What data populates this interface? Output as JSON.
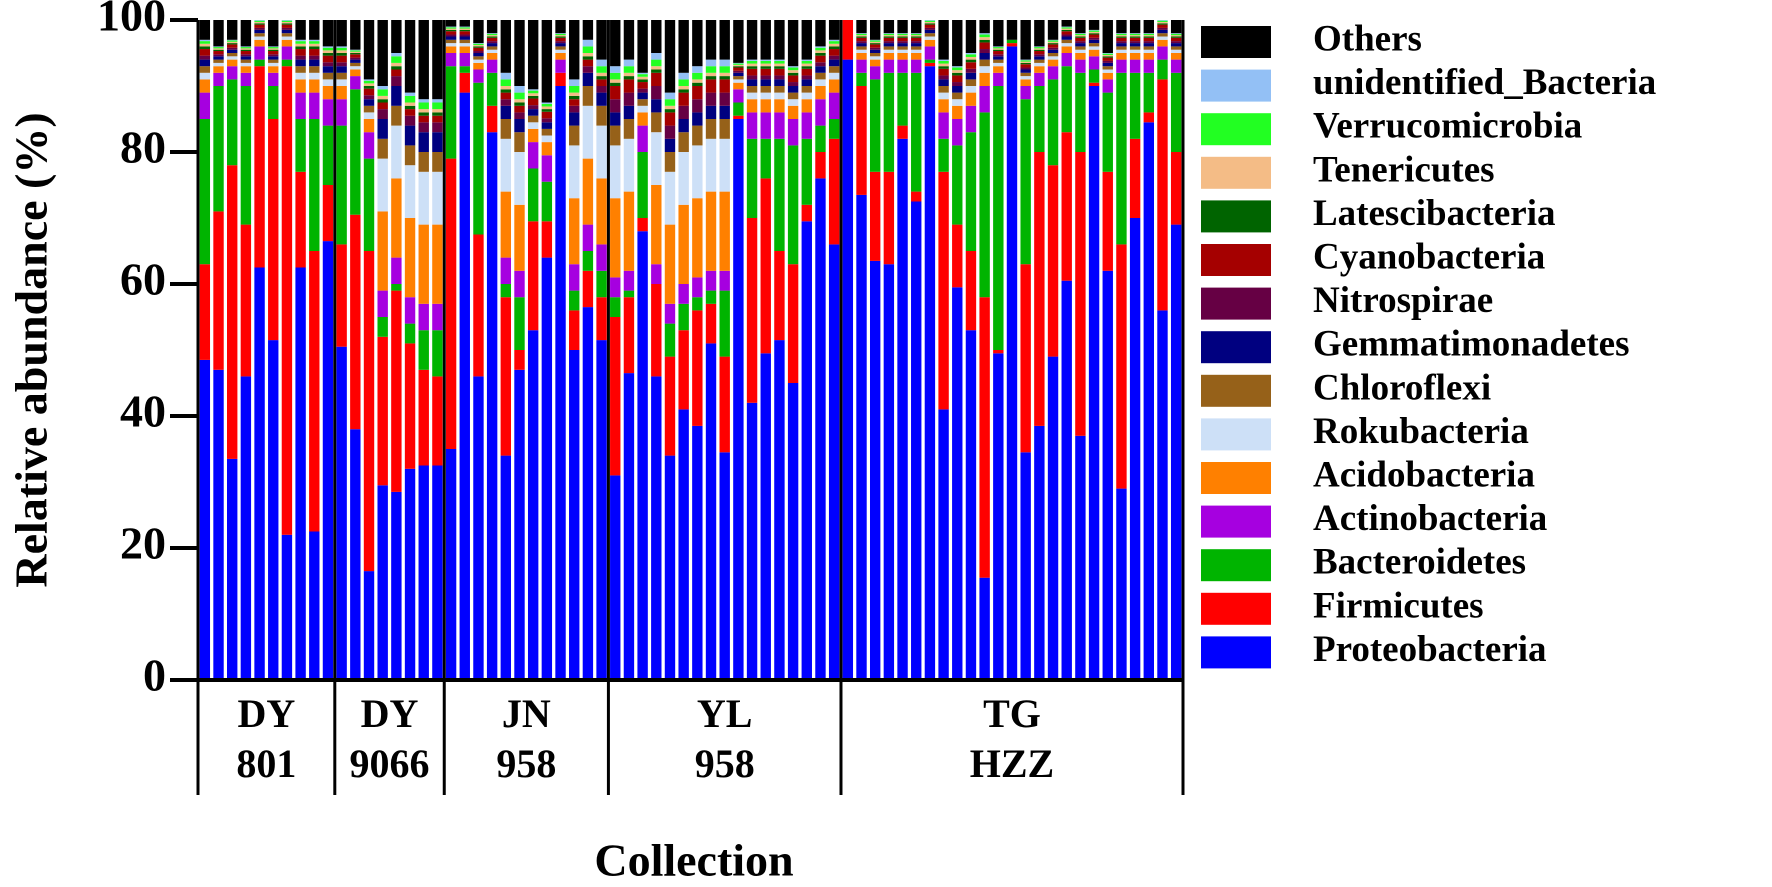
{
  "chart_data": {
    "type": "stacked_bar",
    "ylabel": "Relative abundance (%)",
    "xlabel": "Collection",
    "ylim": [
      0,
      100
    ],
    "yticks": [
      0,
      20,
      40,
      60,
      80,
      100
    ],
    "categories": [
      null,
      null,
      null,
      null,
      null,
      null,
      null,
      null,
      null,
      null,
      null,
      null,
      null,
      null,
      null,
      null,
      null,
      null,
      null,
      null,
      null,
      null,
      null,
      null,
      null,
      null,
      null,
      null,
      null,
      null,
      null,
      null,
      null,
      null,
      null,
      null,
      null,
      null,
      null,
      null,
      null,
      null,
      null,
      null,
      null,
      null,
      null,
      null,
      null,
      null,
      null,
      null,
      null,
      null,
      null,
      null,
      null,
      null,
      null,
      null,
      null,
      null,
      null,
      null,
      null,
      null,
      null,
      null,
      null,
      null,
      null,
      null
    ],
    "groups": [
      {
        "label": [
          "DY",
          "801"
        ],
        "size": 10
      },
      {
        "label": [
          "DY",
          "9066"
        ],
        "size": 8
      },
      {
        "label": [
          "JN",
          "958"
        ],
        "size": 12
      },
      {
        "label": [
          "YL",
          "958"
        ],
        "size": 17
      },
      {
        "label": [
          "TG",
          "HZZ"
        ],
        "size": 25
      }
    ],
    "series": [
      {
        "name": "Proteobacteria",
        "color": "#0000ff",
        "values": [
          48.5,
          47,
          33.5,
          46,
          62.5,
          51.5,
          22,
          62.5,
          22.5,
          66.5,
          50.5,
          38,
          16.5,
          29.5,
          28.5,
          32,
          32.5,
          32.5,
          35,
          89,
          46,
          83,
          34,
          47,
          53,
          64,
          90,
          50,
          56.5,
          51.5,
          31,
          46.5,
          68,
          46,
          34,
          41,
          38.5,
          51,
          34.5,
          85,
          42,
          49.5,
          51.5,
          45,
          69.5,
          76,
          66,
          94,
          73.5,
          63.5,
          63,
          82,
          72.5,
          93,
          41,
          59.5,
          53,
          15.5,
          49.5,
          96,
          34.5,
          38.5,
          49,
          60.5,
          37,
          90,
          62,
          29,
          70,
          84.5,
          56,
          69
        ]
      },
      {
        "name": "Firmicutes",
        "color": "#ff0000",
        "values": [
          14.5,
          24,
          44.5,
          23,
          30.5,
          33.5,
          71,
          14.5,
          42.5,
          8.5,
          15.5,
          32.5,
          48.5,
          22.5,
          30.5,
          19,
          14.5,
          13.5,
          44,
          3,
          21.5,
          4,
          24,
          3,
          16.5,
          5.5,
          2,
          6,
          5.5,
          6.5,
          24,
          11.5,
          2,
          14,
          15,
          12,
          17.5,
          6,
          14.5,
          0.5,
          28,
          26.5,
          13.5,
          18,
          2.5,
          4,
          16,
          6,
          16.5,
          13.5,
          14,
          2,
          1.5,
          0.5,
          36,
          9.5,
          12,
          42.5,
          0.5,
          0.5,
          28.5,
          41.5,
          29,
          22.5,
          43,
          0.5,
          15,
          37,
          12,
          1.5,
          35,
          11
        ]
      },
      {
        "name": "Bacteroidetes",
        "color": "#00b400",
        "values": [
          22,
          19,
          13,
          21,
          1,
          5,
          1,
          8,
          20,
          9,
          18,
          19,
          14,
          3,
          1,
          3,
          6,
          7,
          14,
          1,
          23,
          5,
          2,
          8,
          8,
          6,
          0,
          3,
          3,
          4,
          3,
          1,
          10,
          0,
          5,
          4,
          2,
          2,
          10,
          2,
          12,
          6,
          17,
          18,
          10,
          4,
          3,
          0,
          2,
          14,
          15,
          8,
          18,
          0.5,
          5,
          12,
          18,
          28,
          40,
          0.5,
          25,
          10,
          13,
          10,
          12,
          2,
          12,
          26,
          10,
          6,
          3,
          12
        ]
      },
      {
        "name": "Actinobacteria",
        "color": "#a600e0",
        "values": [
          4,
          2,
          2,
          2,
          2,
          2,
          2,
          4,
          4,
          4,
          4,
          2,
          4,
          4,
          4,
          4,
          4,
          4,
          2,
          2,
          2,
          2,
          4,
          4,
          4,
          4,
          2,
          4,
          4,
          4,
          3,
          3,
          4,
          3,
          3,
          3,
          3,
          3,
          3,
          2,
          4,
          4,
          4,
          4,
          4,
          4,
          4,
          0,
          2,
          2,
          2,
          2,
          2,
          2,
          4,
          4,
          4,
          4,
          2,
          0,
          2,
          2,
          2,
          2,
          2,
          2,
          2,
          2,
          2,
          2,
          2,
          2
        ]
      },
      {
        "name": "Acidobacteria",
        "color": "#ff8000",
        "values": [
          2,
          1,
          1,
          1,
          1,
          1,
          1,
          2,
          2,
          2,
          2,
          1,
          2,
          12,
          12,
          12,
          12,
          12,
          1,
          1,
          1,
          1,
          10,
          10,
          2,
          2,
          1,
          10,
          10,
          10,
          12,
          12,
          2,
          12,
          12,
          12,
          12,
          12,
          12,
          1,
          2,
          2,
          2,
          2,
          2,
          2,
          2,
          0,
          1,
          1,
          1,
          1,
          1,
          1,
          2,
          2,
          2,
          2,
          1,
          0,
          1,
          1,
          1,
          1,
          1,
          1,
          1,
          1,
          1,
          1,
          1,
          1
        ]
      },
      {
        "name": "Rokubacteria",
        "color": "#cde0f7",
        "values": [
          1,
          0.5,
          0.5,
          0.5,
          0.5,
          0.5,
          0.5,
          1,
          1,
          1,
          1,
          0.5,
          1,
          8,
          8,
          8,
          8,
          8,
          0.5,
          0.5,
          0.5,
          0.5,
          8,
          8,
          1,
          1,
          0.5,
          8,
          8,
          8,
          8,
          8,
          1,
          8,
          8,
          8,
          8,
          8,
          8,
          0.5,
          1,
          1,
          1,
          1,
          1,
          1,
          1,
          0,
          0.5,
          0.5,
          0.5,
          0.5,
          0.5,
          0.5,
          1,
          1,
          1,
          1,
          0.5,
          0,
          0.5,
          0.5,
          0.5,
          0.5,
          0.5,
          0.5,
          0.5,
          0.5,
          0.5,
          0.5,
          0.5,
          0.5
        ]
      },
      {
        "name": "Chloroflexi",
        "color": "#966119",
        "values": [
          1,
          0.5,
          0.5,
          0.5,
          0.5,
          0.5,
          0.5,
          1,
          1,
          1,
          1,
          0.5,
          1,
          3,
          3,
          3,
          3,
          3,
          0.5,
          0.5,
          0.5,
          0.5,
          3,
          3,
          1,
          1,
          0.5,
          3,
          3,
          3,
          3,
          3,
          1,
          3,
          3,
          3,
          3,
          3,
          3,
          0.5,
          1,
          1,
          1,
          1,
          1,
          1,
          1,
          0,
          0.5,
          0.5,
          0.5,
          0.5,
          0.5,
          0.5,
          1,
          1,
          1,
          1,
          0.5,
          0,
          0.5,
          0.5,
          0.5,
          0.5,
          0.5,
          0.5,
          0.5,
          0.5,
          0.5,
          0.5,
          0.5,
          0.5
        ]
      },
      {
        "name": "Gemmatimonadetes",
        "color": "#000080",
        "values": [
          1,
          0.5,
          0.5,
          0.5,
          0.5,
          0.5,
          0.5,
          1,
          1,
          1,
          1,
          0.5,
          1,
          3,
          3,
          3,
          3,
          3,
          0.5,
          0.5,
          0.5,
          0.5,
          2,
          2,
          1,
          1,
          0.5,
          2,
          2,
          2,
          2,
          2,
          1,
          2,
          2,
          2,
          2,
          2,
          2,
          0.5,
          1,
          1,
          1,
          1,
          1,
          1,
          1,
          0,
          0.5,
          0.5,
          0.5,
          0.5,
          0.5,
          0.5,
          1,
          1,
          1,
          1,
          0.5,
          0,
          0.5,
          0.5,
          0.5,
          0.5,
          0.5,
          0.5,
          0.5,
          0.5,
          0.5,
          0.5,
          0.5,
          0.5
        ]
      },
      {
        "name": "Nitrospirae",
        "color": "#660044",
        "values": [
          0.6,
          0.3,
          0.3,
          0.3,
          0.3,
          0.3,
          0.3,
          0.6,
          0.6,
          0.6,
          0.6,
          0.3,
          0.6,
          1.5,
          1.5,
          1.5,
          1.5,
          1.5,
          0.3,
          0.3,
          0.3,
          0.3,
          1,
          1,
          0.6,
          0.6,
          0.3,
          1,
          1,
          1,
          2,
          2,
          0.6,
          2,
          2,
          2,
          2,
          2,
          2,
          0.3,
          0.6,
          0.6,
          0.6,
          0.6,
          0.6,
          0.6,
          0.6,
          0,
          0.3,
          0.3,
          0.3,
          0.3,
          0.3,
          0.3,
          0.6,
          0.6,
          0.6,
          0.6,
          0.3,
          0,
          0.3,
          0.3,
          0.3,
          0.3,
          0.3,
          0.3,
          0.3,
          0.3,
          0.3,
          0.3,
          0.3,
          0.3
        ]
      },
      {
        "name": "Cyanobacteria",
        "color": "#a50000",
        "values": [
          1,
          0.5,
          0.5,
          0.5,
          0.5,
          0.5,
          0.5,
          1,
          1,
          1,
          1,
          0.5,
          1,
          1,
          1,
          1,
          1,
          1,
          0.5,
          0.5,
          0.5,
          0.5,
          1,
          1,
          1,
          1,
          0.5,
          1,
          1,
          1,
          2,
          2,
          1,
          2,
          2,
          2,
          2,
          2,
          2,
          0.5,
          1,
          1,
          1,
          1,
          1,
          1,
          1,
          0,
          0.5,
          0.5,
          0.5,
          0.5,
          0.5,
          0.5,
          1,
          1,
          1,
          1,
          0.5,
          0,
          0.5,
          0.5,
          0.5,
          0.5,
          0.5,
          0.5,
          0.5,
          0.5,
          0.5,
          0.5,
          0.5,
          0.5
        ]
      },
      {
        "name": "Latescibacteria",
        "color": "#006400",
        "values": [
          0.4,
          0.2,
          0.2,
          0.2,
          0.2,
          0.2,
          0.2,
          0.4,
          0.4,
          0.4,
          0.4,
          0.2,
          0.4,
          0.5,
          0.5,
          0.5,
          0.5,
          0.5,
          0.2,
          0.2,
          0.2,
          0.2,
          0.5,
          0.5,
          0.4,
          0.4,
          0.2,
          0.5,
          0.5,
          0.5,
          0.5,
          0.5,
          0.4,
          0.5,
          0.5,
          0.5,
          0.5,
          0.5,
          0.5,
          0.2,
          0.4,
          0.4,
          0.4,
          0.4,
          0.4,
          0.4,
          0.4,
          0,
          0.2,
          0.2,
          0.2,
          0.2,
          0.2,
          0.2,
          0.4,
          0.4,
          0.4,
          0.4,
          0.2,
          0,
          0.2,
          0.2,
          0.2,
          0.2,
          0.2,
          0.2,
          0.2,
          0.2,
          0.2,
          0.2,
          0.2,
          0.2
        ]
      },
      {
        "name": "Tenericutes",
        "color": "#f4bc86",
        "values": [
          0.4,
          0.2,
          0.2,
          0.2,
          0.2,
          0.2,
          0.2,
          0.4,
          0.4,
          0.4,
          0.4,
          0.2,
          0.4,
          0.5,
          0.5,
          0.5,
          0.5,
          0.5,
          0.2,
          0.2,
          0.2,
          0.2,
          0.5,
          0.5,
          0.4,
          0.4,
          0.2,
          0.5,
          0.5,
          0.5,
          0.5,
          0.5,
          0.4,
          0.5,
          0.5,
          0.5,
          0.5,
          0.5,
          0.5,
          0.2,
          0.4,
          0.4,
          0.4,
          0.4,
          0.4,
          0.4,
          0.4,
          0,
          0.2,
          0.2,
          0.2,
          0.2,
          0.2,
          0.2,
          0.4,
          0.4,
          0.4,
          0.4,
          0.2,
          0,
          0.2,
          0.2,
          0.2,
          0.2,
          0.2,
          0.2,
          0.2,
          0.2,
          0.2,
          0.2,
          0.2,
          0.2
        ]
      },
      {
        "name": "Verrucomicrobia",
        "color": "#22ff22",
        "values": [
          0.4,
          0.2,
          0.2,
          0.2,
          0.2,
          0.2,
          0.2,
          0.4,
          0.4,
          0.4,
          0.4,
          0.2,
          0.4,
          1,
          1,
          1,
          1,
          1,
          0.2,
          0.2,
          0.2,
          0.2,
          1,
          1,
          0.4,
          0.4,
          0.2,
          1,
          1,
          1,
          1,
          1,
          0.4,
          1,
          1,
          1,
          1,
          1,
          1,
          0.2,
          0.4,
          0.4,
          0.4,
          0.4,
          0.4,
          0.4,
          0.4,
          0,
          0.2,
          0.2,
          0.2,
          0.2,
          0.2,
          0.2,
          0.4,
          0.4,
          0.4,
          0.4,
          0.2,
          0,
          0.2,
          0.2,
          0.2,
          0.2,
          0.2,
          0.2,
          0.2,
          0.2,
          0.2,
          0.2,
          0.2,
          0.2
        ]
      },
      {
        "name": "unidentified_Bacteria",
        "color": "#93c0f5",
        "values": [
          0.2,
          0.1,
          0.1,
          0.1,
          0.1,
          0.1,
          0.1,
          0.2,
          0.2,
          0.2,
          0.2,
          0.1,
          0.2,
          0.5,
          0.5,
          0.5,
          0.5,
          0.5,
          0.1,
          0.1,
          0.1,
          0.1,
          1,
          1,
          0.2,
          0.2,
          0.1,
          1,
          1,
          1,
          1,
          1,
          0.2,
          1,
          1,
          1,
          1,
          1,
          1,
          0.1,
          0.2,
          0.2,
          0.2,
          0.2,
          0.2,
          0.2,
          0.2,
          0,
          0.1,
          0.1,
          0.1,
          0.1,
          0.1,
          0.1,
          0.2,
          0.2,
          0.2,
          0.2,
          0.1,
          0,
          0.1,
          0.1,
          0.1,
          0.1,
          0.1,
          0.1,
          0.1,
          0.1,
          0.1,
          0.1,
          0.1,
          0.1
        ]
      },
      {
        "name": "Others",
        "color": "#000000",
        "values": [
          3,
          4,
          3,
          4,
          0,
          4,
          0,
          3,
          3,
          4,
          4,
          4.5,
          9,
          10,
          5,
          11,
          12,
          12,
          1,
          1,
          3.5,
          2,
          8,
          10,
          10.5,
          12.5,
          2,
          9,
          3,
          6,
          7,
          6,
          8,
          5,
          11,
          8,
          7,
          6,
          6,
          6.5,
          6,
          6,
          6,
          7,
          6,
          4,
          3,
          0,
          2,
          3,
          2,
          2,
          2,
          0,
          6,
          7,
          5,
          2,
          4,
          3,
          6,
          4,
          3,
          1,
          2,
          1.5,
          5,
          2,
          2,
          2,
          0,
          2
        ]
      }
    ]
  }
}
